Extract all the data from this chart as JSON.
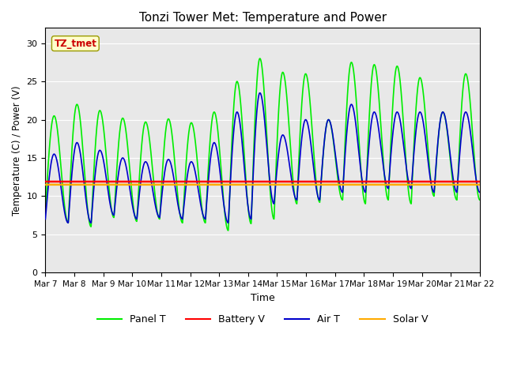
{
  "title": "Tonzi Tower Met: Temperature and Power",
  "xlabel": "Time",
  "ylabel": "Temperature (C) / Power (V)",
  "xtick_labels": [
    "Mar 7",
    "Mar 8",
    "Mar 9",
    "Mar 10",
    "Mar 11",
    "Mar 12",
    "Mar 13",
    "Mar 14",
    "Mar 15",
    "Mar 16",
    "Mar 17",
    "Mar 18",
    "Mar 19",
    "Mar 20",
    "Mar 21",
    "Mar 22"
  ],
  "ylim": [
    0,
    32
  ],
  "yticks": [
    0,
    5,
    10,
    15,
    20,
    25,
    30
  ],
  "bg_color": "#e8e8e8",
  "panel_color": "#00ee00",
  "battery_color": "#ff0000",
  "air_color": "#0000cc",
  "solar_color": "#ffaa00",
  "annotation_text": "TZ_tmet",
  "annotation_color": "#cc0000",
  "annotation_bg": "#ffffcc",
  "legend_labels": [
    "Panel T",
    "Battery V",
    "Air T",
    "Solar V"
  ],
  "panel_peaks": [
    20.5,
    22.0,
    21.2,
    20.2,
    19.7,
    20.1,
    19.6,
    21.0,
    25.0,
    28.0,
    26.2,
    26.0,
    20.0,
    27.5,
    27.2,
    27.0,
    25.5,
    21.0,
    26.0
  ],
  "panel_troughs": [
    8.0,
    6.5,
    6.0,
    7.2,
    6.7,
    7.0,
    6.5,
    6.5,
    5.5,
    6.4,
    7.0,
    9.0,
    9.2,
    9.5,
    9.0,
    9.5,
    9.0,
    10.0,
    9.5
  ],
  "air_peaks": [
    15.5,
    17.0,
    16.0,
    15.0,
    14.5,
    14.8,
    14.5,
    17.0,
    21.0,
    23.5,
    18.0,
    20.0,
    20.0,
    22.0,
    21.0,
    21.0,
    21.0,
    21.0,
    21.0
  ],
  "air_troughs": [
    7.0,
    6.5,
    6.5,
    7.5,
    7.0,
    7.2,
    7.0,
    7.0,
    6.5,
    7.0,
    9.0,
    9.5,
    9.5,
    10.5,
    10.5,
    11.0,
    11.0,
    10.5,
    10.5
  ],
  "battery_v_value": 11.9,
  "solar_v_value": 11.5
}
